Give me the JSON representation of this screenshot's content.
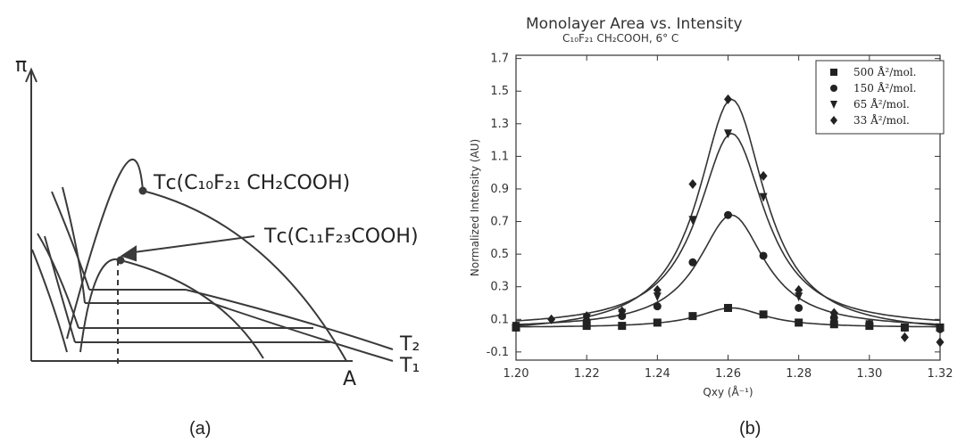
{
  "panel_a": {
    "caption": "(a)",
    "y_axis_label": "π",
    "x_axis_label": "A",
    "isotherm_labels": [
      "T₂",
      "T₁"
    ],
    "critical_points": [
      "Tᴄ(C₁₀F₂₁ CH₂COOH)",
      "Tᴄ(C₁₁F₂₃COOH)"
    ]
  },
  "panel_b": {
    "caption": "(b)",
    "title": "Monolayer Area vs. Intensity",
    "subtitle": "C₁₀F₂₁ CH₂COOH, 6° C",
    "marker_shapes": [
      "square",
      "circle",
      "triangle-down",
      "diamond"
    ]
  },
  "chart_data": {
    "type": "scatter",
    "title": "Monolayer Area vs. Intensity",
    "subtitle": "C₁₀F₂₁ CH₂COOH, 6° C",
    "xlabel": "Qxy (Å⁻¹)",
    "ylabel": "Normalized Intensity (AU)",
    "xlim": [
      1.2,
      1.32
    ],
    "ylim": [
      -0.15,
      1.72
    ],
    "xticks": [
      "1.20",
      "1.22",
      "1.24",
      "1.26",
      "1.28",
      "1.30",
      "1.32"
    ],
    "yticks": [
      "-0.1",
      "0.1",
      "0.3",
      "0.5",
      "0.7",
      "0.9",
      "1.1",
      "1.3",
      "1.5",
      "1.7"
    ],
    "legend_position": "top-right",
    "fit_curves": true,
    "series": [
      {
        "name": "500 Å²/mol.",
        "marker": "square",
        "x": [
          1.2,
          1.22,
          1.23,
          1.24,
          1.25,
          1.26,
          1.27,
          1.28,
          1.29,
          1.3,
          1.31,
          1.32
        ],
        "y": [
          0.05,
          0.06,
          0.06,
          0.08,
          0.12,
          0.17,
          0.13,
          0.08,
          0.07,
          0.06,
          0.05,
          0.05
        ]
      },
      {
        "name": "150 Å²/mol.",
        "marker": "circle",
        "x": [
          1.2,
          1.22,
          1.23,
          1.24,
          1.25,
          1.26,
          1.27,
          1.28,
          1.29,
          1.3,
          1.31,
          1.32
        ],
        "y": [
          0.05,
          0.09,
          0.12,
          0.18,
          0.45,
          0.74,
          0.49,
          0.17,
          0.11,
          0.07,
          0.05,
          0.04
        ]
      },
      {
        "name": "65 Å²/mol.",
        "marker": "triangle-down",
        "x": [
          1.2,
          1.22,
          1.23,
          1.24,
          1.25,
          1.26,
          1.27,
          1.28,
          1.29,
          1.3,
          1.31,
          1.32
        ],
        "y": [
          0.06,
          0.11,
          0.14,
          0.24,
          0.71,
          1.24,
          0.85,
          0.24,
          0.12,
          0.07,
          0.05,
          0.04
        ]
      },
      {
        "name": "33 Å²/mol.",
        "marker": "diamond",
        "x": [
          1.2,
          1.21,
          1.22,
          1.23,
          1.24,
          1.25,
          1.26,
          1.27,
          1.28,
          1.29,
          1.3,
          1.31,
          1.32
        ],
        "y": [
          0.06,
          0.1,
          0.12,
          0.15,
          0.28,
          0.93,
          1.45,
          0.98,
          0.28,
          0.14,
          0.07,
          -0.01,
          -0.04
        ]
      }
    ]
  }
}
